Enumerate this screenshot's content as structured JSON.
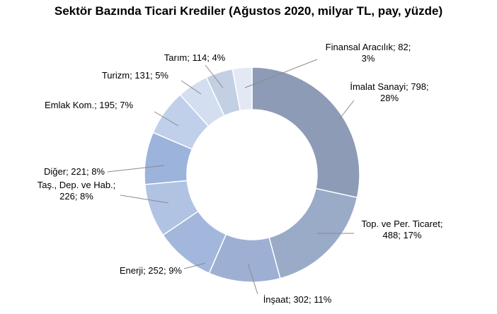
{
  "chart_data": {
    "type": "pie",
    "donut": true,
    "title": "Sektör Bazında Ticari Krediler (Ağustos 2020, milyar TL, pay, yüzde)",
    "slices": [
      {
        "name": "İmalat Sanayi",
        "value": 798,
        "pct": 28,
        "label_lines": [
          "İmalat Sanayi; 798;",
          "28%"
        ],
        "color": "#8e9bb6"
      },
      {
        "name": "Top. ve Per. Ticaret",
        "value": 488,
        "pct": 17,
        "label_lines": [
          "Top. ve Per. Ticaret;",
          "488; 17%"
        ],
        "color": "#9aabc8"
      },
      {
        "name": "İnşaat",
        "value": 302,
        "pct": 11,
        "label_lines": [
          "İnşaat; 302; 11%"
        ],
        "color": "#9db0d3"
      },
      {
        "name": "Enerji",
        "value": 252,
        "pct": 9,
        "label_lines": [
          "Enerji; 252; 9%"
        ],
        "color": "#a3b7dc"
      },
      {
        "name": "Taş., Dep. ve Hab.",
        "value": 226,
        "pct": 8,
        "label_lines": [
          "Taş., Dep. ve Hab.;",
          "226; 8%"
        ],
        "color": "#b0c3e3"
      },
      {
        "name": "Diğer",
        "value": 221,
        "pct": 8,
        "label_lines": [
          "Diğer; 221; 8%"
        ],
        "color": "#9cb3dc"
      },
      {
        "name": "Emlak Kom.",
        "value": 195,
        "pct": 7,
        "label_lines": [
          "Emlak Kom.; 195; 7%"
        ],
        "color": "#c0d0ea"
      },
      {
        "name": "Turizm",
        "value": 131,
        "pct": 5,
        "label_lines": [
          "Turizm; 131; 5%"
        ],
        "color": "#d3dff0"
      },
      {
        "name": "Tarım",
        "value": 114,
        "pct": 4,
        "label_lines": [
          "Tarım; 114; 4%"
        ],
        "color": "#c3cfe2"
      },
      {
        "name": "Finansal Aracılık",
        "value": 82,
        "pct": 3,
        "label_lines": [
          "Finansal Aracılık; 82;",
          "3%"
        ],
        "color": "#e3e9f4"
      }
    ]
  }
}
